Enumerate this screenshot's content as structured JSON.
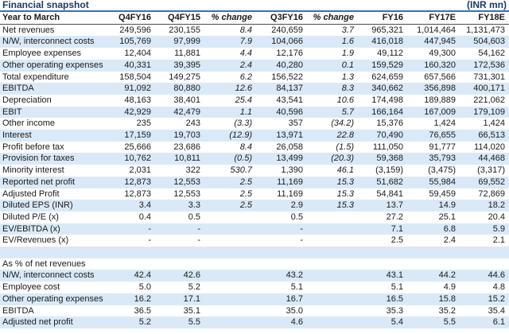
{
  "title": "Financial snapshot",
  "unit": "(INR mn)",
  "colors": {
    "title_text": "#1F3864",
    "title_rule": "#2E75B6",
    "header_rule": "#4d4d4d",
    "row_highlight": "#D9E9F7"
  },
  "table": {
    "columns": [
      "Year to March",
      "Q4FY16",
      "Q4FY15",
      "% change",
      "Q3FY16",
      "% change",
      "FY16",
      "FY17E",
      "FY18E"
    ],
    "italic_value_columns": [
      2,
      4
    ],
    "rows": [
      {
        "label": "Net revenues",
        "values": [
          "249,596",
          "230,155",
          "8.4",
          "240,659",
          "3.7",
          "965,321",
          "1,014,464",
          "1,131,473"
        ],
        "hl": false
      },
      {
        "label": "N/W, interconnect costs",
        "values": [
          "105,769",
          "97,999",
          "7.9",
          "104,066",
          "1.6",
          "416,018",
          "447,945",
          "504,603"
        ],
        "hl": true
      },
      {
        "label": "Employee expenses",
        "values": [
          "12,404",
          "11,881",
          "4.4",
          "12,176",
          "1.9",
          "49,112",
          "49,300",
          "54,162"
        ],
        "hl": false
      },
      {
        "label": "Other operating expenses",
        "values": [
          "40,331",
          "39,395",
          "2.4",
          "40,280",
          "0.1",
          "159,529",
          "160,320",
          "172,536"
        ],
        "hl": true
      },
      {
        "label": "Total expenditure",
        "values": [
          "158,504",
          "149,275",
          "6.2",
          "156,522",
          "1.3",
          "624,659",
          "657,566",
          "731,301"
        ],
        "hl": false
      },
      {
        "label": "EBITDA",
        "values": [
          "91,092",
          "80,880",
          "12.6",
          "84,137",
          "8.3",
          "340,662",
          "356,898",
          "400,171"
        ],
        "hl": true
      },
      {
        "label": "Depreciation",
        "values": [
          "48,163",
          "38,401",
          "25.4",
          "43,541",
          "10.6",
          "174,498",
          "189,889",
          "221,062"
        ],
        "hl": false
      },
      {
        "label": "EBIT",
        "values": [
          "42,929",
          "42,479",
          "1.1",
          "40,596",
          "5.7",
          "166,164",
          "167,009",
          "179,109"
        ],
        "hl": true
      },
      {
        "label": "Other income",
        "values": [
          "235",
          "243",
          "(3.3)",
          "357",
          "(34.2)",
          "15,376",
          "1,424",
          "1,424"
        ],
        "hl": false
      },
      {
        "label": "Interest",
        "values": [
          "17,159",
          "19,703",
          "(12.9)",
          "13,971",
          "22.8",
          "70,490",
          "76,655",
          "66,513"
        ],
        "hl": true
      },
      {
        "label": "Profit before tax",
        "values": [
          "25,666",
          "23,686",
          "8.4",
          "26,058",
          "(1.5)",
          "111,050",
          "91,777",
          "114,020"
        ],
        "hl": false
      },
      {
        "label": "Provision for taxes",
        "values": [
          "10,762",
          "10,811",
          "(0.5)",
          "13,499",
          "(20.3)",
          "59,368",
          "35,793",
          "44,468"
        ],
        "hl": true
      },
      {
        "label": "Minority interest",
        "values": [
          "2,031",
          "322",
          "530.7",
          "1,390",
          "46.1",
          "(3,159)",
          "(3,475)",
          "(3,317)"
        ],
        "hl": false
      },
      {
        "label": "Reported net profit",
        "values": [
          "12,873",
          "12,553",
          "2.5",
          "11,169",
          "15.3",
          "51,682",
          "55,984",
          "69,552"
        ],
        "hl": true
      },
      {
        "label": "Adjusted Profit",
        "values": [
          "12,873",
          "12,553",
          "2.5",
          "11,169",
          "15.3",
          "54,841",
          "59,459",
          "72,869"
        ],
        "hl": false
      },
      {
        "label": "Diluted EPS (INR)",
        "values": [
          "3.4",
          "3.3",
          "2.5",
          "2.9",
          "15.3",
          "13.7",
          "14.9",
          "18.2"
        ],
        "hl": true
      },
      {
        "label": "Diluted P/E (x)",
        "values": [
          "0.4",
          "0.5",
          "",
          "0.5",
          "",
          "27.2",
          "25.1",
          "20.4"
        ],
        "hl": false
      },
      {
        "label": "EV/EBITDA (x)",
        "values": [
          "-",
          "-",
          "",
          "-",
          "",
          "7.1",
          "6.8",
          "5.9"
        ],
        "hl": true
      },
      {
        "label": "EV/Revenues (x)",
        "values": [
          "-",
          "-",
          "",
          "-",
          "",
          "2.5",
          "2.4",
          "2.1"
        ],
        "hl": false
      },
      {
        "label": "",
        "values": [
          "",
          "",
          "",
          "",
          "",
          "",
          "",
          ""
        ],
        "hl": true,
        "spacer": true
      },
      {
        "label": "As % of net revenues",
        "values": [
          "",
          "",
          "",
          "",
          "",
          "",
          "",
          ""
        ],
        "hl": false,
        "bold": true
      },
      {
        "label": "N/W, interconnect costs",
        "values": [
          "42.4",
          "42.6",
          "",
          "43.2",
          "",
          "43.1",
          "44.2",
          "44.6"
        ],
        "hl": true
      },
      {
        "label": "Employee cost",
        "values": [
          "5.0",
          "5.2",
          "",
          "5.1",
          "",
          "5.1",
          "4.9",
          "4.8"
        ],
        "hl": false
      },
      {
        "label": "Other operating expenses",
        "values": [
          "16.2",
          "17.1",
          "",
          "16.7",
          "",
          "16.5",
          "15.8",
          "15.2"
        ],
        "hl": true
      },
      {
        "label": "EBITDA",
        "values": [
          "36.5",
          "35.1",
          "",
          "35.0",
          "",
          "35.3",
          "35.2",
          "35.4"
        ],
        "hl": false
      },
      {
        "label": "Adjusted net profit",
        "values": [
          "5.2",
          "5.5",
          "",
          "4.6",
          "",
          "5.4",
          "5.5",
          "6.1"
        ],
        "hl": true
      }
    ]
  }
}
